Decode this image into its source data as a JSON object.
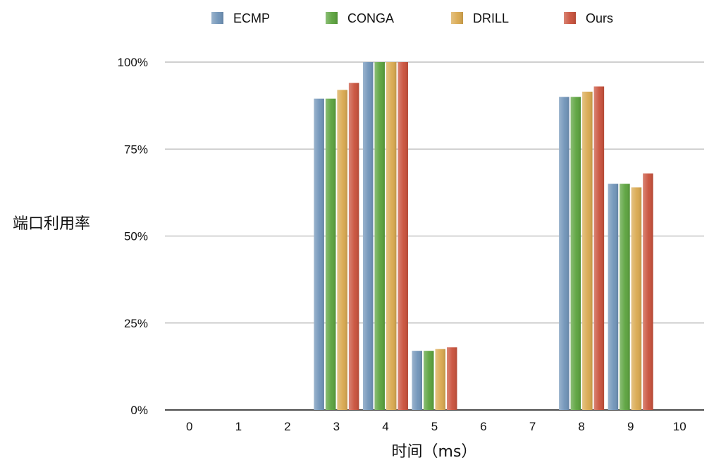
{
  "chart_data": {
    "type": "bar",
    "ylabel": "端口利用率",
    "xlabel": "时间（ms）",
    "categories": [
      "0",
      "1",
      "2",
      "3",
      "4",
      "5",
      "6",
      "7",
      "8",
      "9",
      "10"
    ],
    "y_ticks": [
      "0%",
      "25%",
      "50%",
      "75%",
      "100%"
    ],
    "ylim": [
      0,
      100
    ],
    "legend_position": "top",
    "grid": true,
    "series": [
      {
        "name": "ECMP",
        "color": "#6f93b8",
        "values": [
          0,
          0,
          0,
          89.5,
          100,
          17,
          0,
          0,
          90,
          65,
          0
        ]
      },
      {
        "name": "CONGA",
        "color": "#5aa23c",
        "values": [
          0,
          0,
          0,
          89.5,
          100,
          17,
          0,
          0,
          90,
          65,
          0
        ]
      },
      {
        "name": "DRILL",
        "color": "#d9a84e",
        "values": [
          0,
          0,
          0,
          92,
          100,
          17.5,
          0,
          0,
          91.5,
          64,
          0
        ]
      },
      {
        "name": "Ours",
        "color": "#c9503a",
        "values": [
          0,
          0,
          0,
          94,
          100,
          18,
          0,
          0,
          93,
          68,
          0
        ]
      }
    ]
  }
}
